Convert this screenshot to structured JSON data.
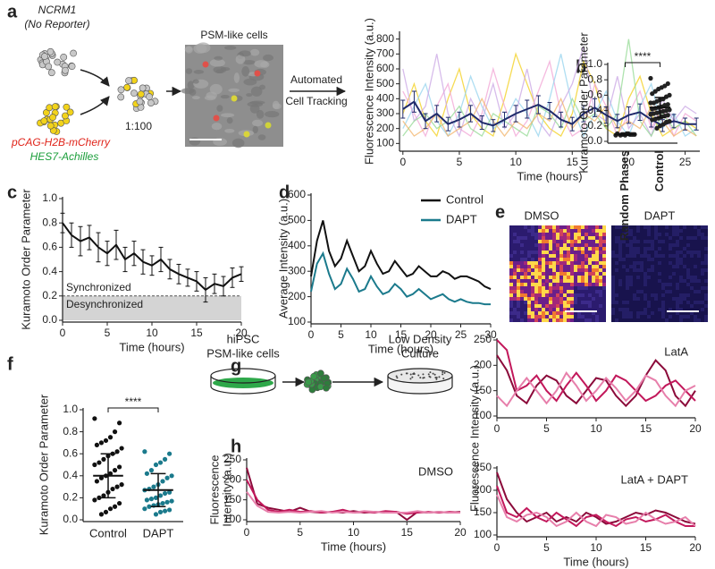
{
  "figure": {
    "panel_letters": [
      "a",
      "b",
      "c",
      "d",
      "e",
      "f",
      "g",
      "h"
    ],
    "a_diagram": {
      "parent": "NCRM1",
      "parent_note": "(No Reporter)",
      "reporter_1": "pCAG-H2B-mCherry",
      "reporter_2": "HES7-Achilles",
      "ratio": "1:100",
      "image_label": "PSM-like cells",
      "step_1": "Automated",
      "step_2": "Cell Tracking"
    },
    "e_images": [
      "DMSO",
      "DAPT"
    ],
    "g_diagram": {
      "source_1": "hiPSC",
      "source_2": "PSM-like cells",
      "target_1": "Low Density",
      "target_2": "Culture"
    }
  },
  "chart_data": [
    {
      "type": "line",
      "xlabel": "Time (hours)",
      "ylabel": "Fluorescence Intensity (a.u.)",
      "x": [
        0,
        1,
        2,
        3,
        4,
        5,
        6,
        7,
        8,
        9,
        10,
        11,
        12,
        13,
        14,
        15,
        16,
        17,
        18,
        19,
        20,
        21,
        22,
        23,
        24,
        25,
        26
      ],
      "xlim": [
        -0.3,
        26.3
      ],
      "xticks": [
        0,
        5,
        10,
        15,
        20,
        25
      ],
      "ylim": [
        60,
        840
      ],
      "yticks": [
        100,
        200,
        300,
        400,
        500,
        600,
        700,
        800
      ],
      "series": [
        {
          "color": "#f3cf1a",
          "values": [
            300,
            500,
            250,
            150,
            400,
            600,
            300,
            200,
            150,
            400,
            700,
            500,
            300,
            200,
            150,
            300,
            650,
            500,
            200,
            150,
            400,
            550,
            300,
            150,
            200,
            250,
            200
          ]
        },
        {
          "color": "#f2a3d4",
          "values": [
            450,
            300,
            150,
            350,
            500,
            200,
            150,
            300,
            600,
            350,
            150,
            250,
            450,
            650,
            300,
            150,
            200,
            500,
            350,
            150,
            300,
            450,
            200,
            350,
            150,
            300,
            250
          ]
        },
        {
          "color": "#94d3ee",
          "values": [
            200,
            350,
            500,
            250,
            150,
            300,
            550,
            350,
            200,
            250,
            400,
            300,
            150,
            400,
            700,
            350,
            150,
            300,
            450,
            250,
            150,
            350,
            500,
            200,
            300,
            150,
            200
          ]
        },
        {
          "color": "#c9a6e4",
          "values": [
            600,
            250,
            350,
            700,
            300,
            150,
            400,
            250,
            500,
            200,
            300,
            600,
            250,
            150,
            350,
            500,
            750,
            300,
            250,
            550,
            200,
            300,
            150,
            400,
            250,
            350,
            300
          ]
        },
        {
          "color": "#93d993",
          "values": [
            150,
            250,
            300,
            200,
            250,
            350,
            200,
            150,
            300,
            250,
            200,
            150,
            350,
            300,
            200,
            400,
            250,
            300,
            200,
            300,
            800,
            250,
            150,
            300,
            200,
            250,
            150
          ]
        },
        {
          "color": "#f1b368",
          "values": [
            250,
            150,
            200,
            300,
            150,
            200,
            250,
            400,
            250,
            150,
            250,
            200,
            300,
            250,
            400,
            200,
            300,
            250,
            350,
            200,
            250,
            200,
            350,
            250,
            150,
            200,
            150
          ]
        },
        {
          "color": "#1f2a6b",
          "values": [
            330,
            380,
            250,
            300,
            230,
            260,
            300,
            240,
            220,
            260,
            300,
            330,
            360,
            320,
            260,
            230,
            300,
            340,
            290,
            250,
            290,
            310,
            260,
            220,
            250,
            230,
            230
          ],
          "errors": [
            60,
            70,
            50,
            55,
            45,
            50,
            55,
            45,
            40,
            50,
            55,
            60,
            60,
            55,
            50,
            45,
            55,
            60,
            55,
            45,
            55,
            55,
            50,
            40,
            45,
            40,
            40
          ]
        }
      ]
    },
    {
      "type": "strip",
      "ylabel": "Kuramoto Order Parameter",
      "categories": [
        "Random Phases",
        "Control"
      ],
      "ylim": [
        0,
        1
      ],
      "yticks": [
        {
          "value": 0,
          "label": "0.0"
        },
        0.2,
        0.4,
        0.6,
        0.8,
        {
          "value": 1,
          "label": "1.0"
        }
      ],
      "annotation": "****",
      "series": [
        {
          "color": "#222222",
          "values": [
            0.08,
            0.09,
            0.09,
            0.1,
            0.09,
            0.08,
            0.1,
            0.09,
            0.09,
            0.1,
            0.08,
            0.09
          ]
        },
        {
          "color": "#222222",
          "values": [
            0.82,
            0.75,
            0.72,
            0.7,
            0.68,
            0.65,
            0.62,
            0.6,
            0.58,
            0.55,
            0.54,
            0.52,
            0.5,
            0.5,
            0.48,
            0.47,
            0.45,
            0.44,
            0.43,
            0.42,
            0.41,
            0.4,
            0.39,
            0.38,
            0.37,
            0.36,
            0.35,
            0.34,
            0.33,
            0.32,
            0.3,
            0.29,
            0.28,
            0.26,
            0.25,
            0.22,
            0.2,
            0.17
          ]
        }
      ],
      "mean": [
        0.09,
        0.44
      ],
      "sd": [
        0.01,
        0.13
      ]
    },
    {
      "type": "line",
      "xlabel": "Time (hours)",
      "ylabel": "Kuramoto Order Parameter",
      "x": [
        0,
        1,
        2,
        3,
        4,
        5,
        6,
        7,
        8,
        9,
        10,
        11,
        12,
        13,
        14,
        15,
        16,
        17,
        18,
        19,
        20
      ],
      "xlim": [
        0,
        20
      ],
      "xticks": [
        0,
        5,
        10,
        15,
        20
      ],
      "ylim": [
        0,
        1
      ],
      "yticks": [
        {
          "value": 0,
          "label": "0.0"
        },
        0.2,
        0.4,
        0.6,
        0.8,
        {
          "value": 1,
          "label": "1.0"
        }
      ],
      "threshold": 0.2,
      "annotations": [
        "Synchronized",
        "Desynchronized"
      ],
      "series": [
        {
          "color": "#111111",
          "values": [
            0.8,
            0.7,
            0.65,
            0.68,
            0.6,
            0.55,
            0.62,
            0.5,
            0.55,
            0.48,
            0.45,
            0.5,
            0.42,
            0.38,
            0.35,
            0.32,
            0.25,
            0.3,
            0.28,
            0.35,
            0.38
          ],
          "errors": [
            0.08,
            0.1,
            0.12,
            0.1,
            0.12,
            0.1,
            0.12,
            0.1,
            0.1,
            0.1,
            0.08,
            0.1,
            0.08,
            0.08,
            0.07,
            0.08,
            0.1,
            0.08,
            0.08,
            0.08,
            0.06
          ]
        }
      ]
    },
    {
      "type": "line",
      "xlabel": "Time (hours)",
      "ylabel": "Average Intensity (a.u.)",
      "x": [
        0,
        1,
        2,
        3,
        4,
        5,
        6,
        7,
        8,
        9,
        10,
        11,
        12,
        13,
        14,
        15,
        16,
        17,
        18,
        19,
        20,
        21,
        22,
        23,
        24,
        25,
        26,
        27,
        28,
        29,
        30
      ],
      "xlim": [
        0,
        30
      ],
      "xticks": [
        0,
        5,
        10,
        15,
        20,
        25,
        30
      ],
      "ylim": [
        100,
        600
      ],
      "yticks": [
        100,
        200,
        300,
        400,
        500,
        600
      ],
      "legend": "upper right",
      "series": [
        {
          "name": "Control",
          "color": "#111111",
          "values": [
            280,
            420,
            500,
            380,
            320,
            350,
            420,
            360,
            300,
            320,
            380,
            330,
            290,
            300,
            340,
            310,
            280,
            290,
            320,
            300,
            280,
            280,
            300,
            290,
            270,
            280,
            280,
            270,
            260,
            240,
            230
          ]
        },
        {
          "name": "DAPT",
          "color": "#1b7a8c",
          "values": [
            220,
            330,
            370,
            290,
            230,
            250,
            310,
            270,
            220,
            230,
            280,
            240,
            210,
            220,
            250,
            230,
            200,
            210,
            230,
            210,
            190,
            200,
            210,
            190,
            180,
            190,
            180,
            175,
            175,
            170,
            170
          ]
        }
      ]
    },
    {
      "type": "strip",
      "ylabel": "Kuramoto Order Parameter",
      "categories": [
        "Control",
        "DAPT"
      ],
      "ylim": [
        0,
        1
      ],
      "yticks": [
        {
          "value": 0,
          "label": "0.0"
        },
        0.2,
        0.4,
        0.6,
        0.8,
        {
          "value": 1,
          "label": "1.0"
        }
      ],
      "annotation": "****",
      "series": [
        {
          "color": "#111111",
          "values": [
            0.92,
            0.88,
            0.8,
            0.75,
            0.72,
            0.7,
            0.68,
            0.65,
            0.62,
            0.6,
            0.58,
            0.55,
            0.52,
            0.5,
            0.48,
            0.45,
            0.42,
            0.4,
            0.38,
            0.35,
            0.32,
            0.3,
            0.28,
            0.25,
            0.22,
            0.2,
            0.18,
            0.15,
            0.12,
            0.1,
            0.07,
            0.05
          ]
        },
        {
          "color": "#1b7a8c",
          "values": [
            0.62,
            0.6,
            0.55,
            0.52,
            0.5,
            0.45,
            0.42,
            0.4,
            0.38,
            0.35,
            0.32,
            0.3,
            0.28,
            0.27,
            0.25,
            0.24,
            0.22,
            0.2,
            0.19,
            0.18,
            0.17,
            0.16,
            0.15,
            0.14,
            0.13,
            0.12,
            0.1,
            0.09,
            0.08,
            0.07,
            0.05
          ]
        }
      ],
      "mean": [
        0.4,
        0.27
      ],
      "sd": [
        0.2,
        0.15
      ]
    },
    {
      "type": "line",
      "xlabel": "Time (hours)",
      "ylabel": [
        "Fluorescence",
        "Intensity (a.u.)"
      ],
      "annotation": "DMSO",
      "x": [
        0,
        1,
        2,
        3,
        4,
        5,
        6,
        7,
        8,
        9,
        10,
        11,
        12,
        13,
        14,
        15,
        16,
        17,
        18,
        19,
        20
      ],
      "xlim": [
        0,
        20
      ],
      "xticks": [
        0,
        5,
        10,
        15,
        20
      ],
      "ylim": [
        100,
        250
      ],
      "yticks": [
        100,
        150,
        200,
        250
      ],
      "series": [
        {
          "color": "#8b0a3a",
          "values": [
            230,
            140,
            130,
            125,
            120,
            130,
            120,
            118,
            120,
            118,
            122,
            118,
            120,
            118,
            120,
            100,
            120,
            118,
            120,
            118,
            120
          ]
        },
        {
          "color": "#c2185b",
          "values": [
            200,
            150,
            125,
            120,
            125,
            120,
            122,
            118,
            120,
            125,
            118,
            120,
            118,
            122,
            120,
            115,
            118,
            120,
            118,
            120,
            118
          ]
        },
        {
          "color": "#e77fab",
          "values": [
            170,
            135,
            120,
            118,
            120,
            118,
            120,
            122,
            118,
            120,
            118,
            122,
            120,
            118,
            118,
            118,
            122,
            118,
            120,
            118,
            118
          ]
        }
      ]
    },
    {
      "type": "line",
      "ylabel": "Fluorescence Intensity (a.u.)",
      "annotation": "LatA",
      "x": [
        0,
        1,
        2,
        3,
        4,
        5,
        6,
        7,
        8,
        9,
        10,
        11,
        12,
        13,
        14,
        15,
        16,
        17,
        18,
        19,
        20
      ],
      "xlim": [
        0,
        20
      ],
      "xticks": [
        0,
        5,
        10,
        15,
        20
      ],
      "ylim": [
        100,
        250
      ],
      "yticks": [
        100,
        150,
        200,
        250
      ],
      "series": [
        {
          "color": "#8b0a3a",
          "values": [
            220,
            190,
            140,
            125,
            160,
            180,
            170,
            140,
            125,
            150,
            175,
            170,
            140,
            120,
            140,
            180,
            210,
            190,
            140,
            120,
            150
          ]
        },
        {
          "color": "#c2185b",
          "values": [
            250,
            230,
            150,
            160,
            180,
            150,
            130,
            160,
            185,
            160,
            130,
            150,
            180,
            170,
            150,
            130,
            140,
            160,
            170,
            150,
            130
          ]
        },
        {
          "color": "#e77fab",
          "values": [
            140,
            120,
            150,
            175,
            150,
            125,
            150,
            185,
            160,
            130,
            150,
            175,
            155,
            130,
            150,
            180,
            170,
            140,
            120,
            150,
            160
          ]
        }
      ]
    },
    {
      "type": "line",
      "xlabel": "Time (hours)",
      "annotation": "LatA + DAPT",
      "x": [
        0,
        1,
        2,
        3,
        4,
        5,
        6,
        7,
        8,
        9,
        10,
        11,
        12,
        13,
        14,
        15,
        16,
        17,
        18,
        19,
        20
      ],
      "xlim": [
        0,
        20
      ],
      "xticks": [
        0,
        5,
        10,
        15,
        20
      ],
      "ylim": [
        100,
        250
      ],
      "yticks": [
        100,
        150,
        200,
        250
      ],
      "series": [
        {
          "color": "#8b0a3a",
          "values": [
            240,
            180,
            150,
            130,
            140,
            150,
            130,
            140,
            130,
            150,
            140,
            125,
            130,
            140,
            150,
            145,
            155,
            150,
            140,
            130,
            125
          ]
        },
        {
          "color": "#c2185b",
          "values": [
            210,
            150,
            140,
            160,
            140,
            130,
            150,
            135,
            120,
            140,
            145,
            130,
            120,
            135,
            140,
            130,
            135,
            145,
            130,
            120,
            120
          ]
        },
        {
          "color": "#e77fab",
          "values": [
            190,
            140,
            130,
            145,
            150,
            140,
            120,
            130,
            150,
            130,
            120,
            145,
            140,
            125,
            130,
            150,
            135,
            125,
            130,
            140,
            120
          ]
        }
      ]
    }
  ]
}
